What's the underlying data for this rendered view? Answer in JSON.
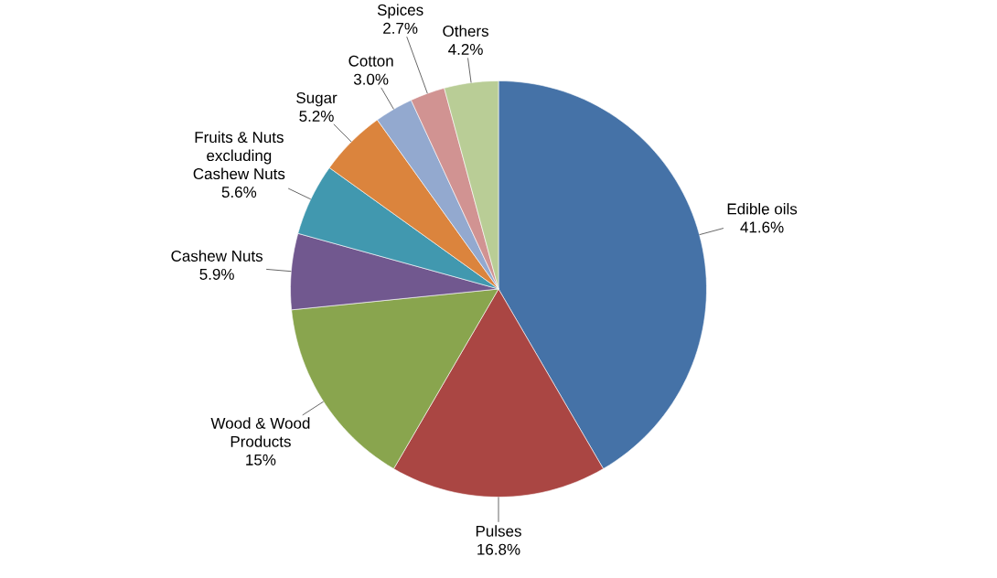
{
  "chart_data": {
    "type": "pie",
    "categories": [
      "Edible oils",
      "Pulses",
      "Wood & Wood Products",
      "Cashew Nuts",
      "Fruits & Nuts excluding Cashew Nuts",
      "Sugar",
      "Cotton",
      "Spices",
      "Others"
    ],
    "values": [
      41.6,
      16.8,
      15,
      5.9,
      5.6,
      5.2,
      3.0,
      2.7,
      4.2
    ],
    "value_labels": [
      "41.6%",
      "16.8%",
      "15%",
      "5.9%",
      "5.6%",
      "5.2%",
      "3.0%",
      "2.7%",
      "4.2%"
    ],
    "colors": [
      "#4572a7",
      "#aa4643",
      "#89a54e",
      "#71588f",
      "#4198af",
      "#db843d",
      "#93a9cf",
      "#d19392",
      "#b9cd96"
    ]
  }
}
